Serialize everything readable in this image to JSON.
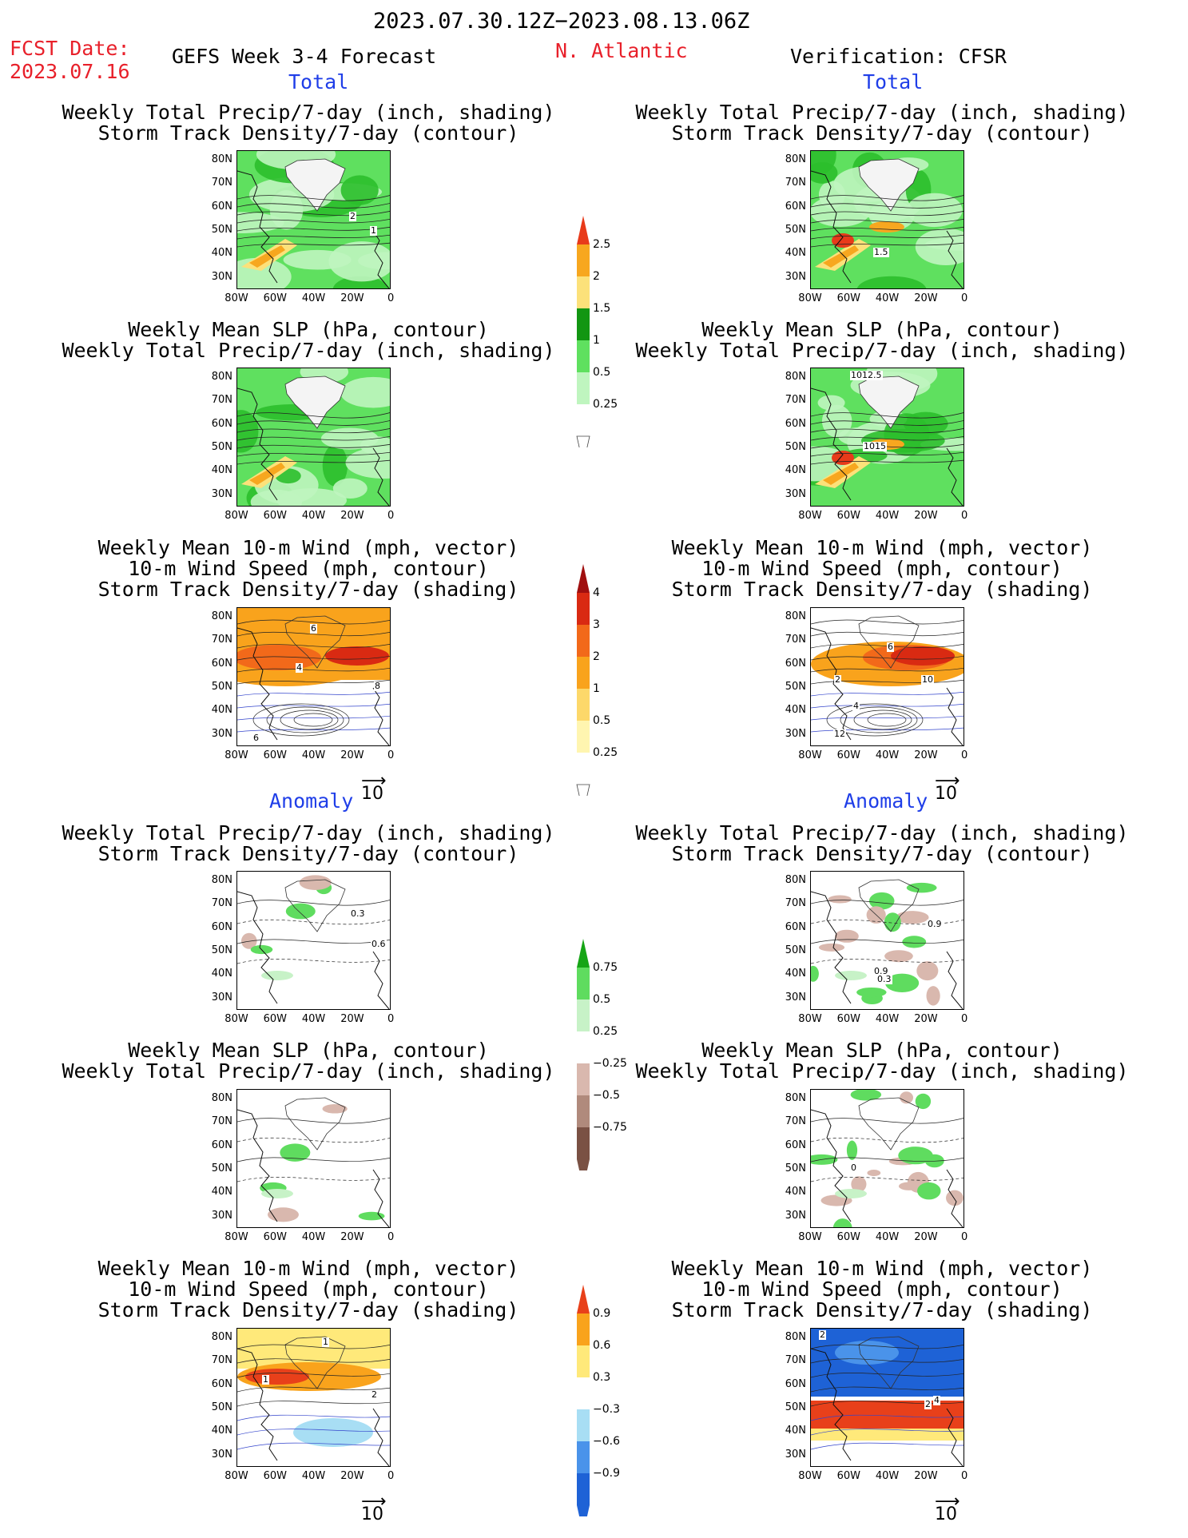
{
  "header": {
    "period": "2023.07.30.12Z−2023.08.13.06Z",
    "fcst_label": "FCST Date:",
    "fcst_date": "2023.07.16",
    "product": "GEFS Week 3-4 Forecast",
    "region": "N. Atlantic",
    "verification": "Verification: CFSR"
  },
  "sections": {
    "total": "Total",
    "anomaly": "Anomaly"
  },
  "titles": {
    "precip_track": "Weekly Total Precip/7-day (inch, shading)\nStorm Track Density/7-day (contour)",
    "slp_precip": "Weekly Mean SLP (hPa, contour)\nWeekly Total Precip/7-day (inch, shading)",
    "wind_track": "Weekly Mean 10-m Wind (mph, vector)\n10-m Wind Speed (mph, contour)\nStorm Track Density/7-day (shading)"
  },
  "axes": {
    "y_ticks": [
      "80N",
      "70N",
      "60N",
      "50N",
      "40N",
      "30N"
    ],
    "x_ticks": [
      "80W",
      "60W",
      "40W",
      "20W",
      "0"
    ]
  },
  "vector_ref": "10",
  "colorbars": {
    "precip_total": [
      "2.5",
      "2",
      "1.5",
      "1",
      "0.5",
      "0.25"
    ],
    "track_total": [
      "4",
      "3",
      "2",
      "1",
      "0.5",
      "0.25"
    ],
    "precip_anom": [
      "0.75",
      "0.5",
      "0.25",
      "−0.25",
      "−0.5",
      "−0.75"
    ],
    "track_anom": [
      "0.9",
      "0.6",
      "0.3",
      "−0.3",
      "−0.6",
      "−0.9"
    ]
  },
  "contour_labels": {
    "fc_track_total": [
      "2",
      "1"
    ],
    "ob_track_total": [
      "1.5"
    ],
    "ob_slp_total": [
      "1012.5",
      "1015"
    ],
    "fc_wind_total": [
      "6",
      "4",
      "8",
      "6"
    ],
    "ob_wind_total": [
      "6",
      "2",
      "4",
      "10",
      "12"
    ],
    "fc_track_anom": [
      "0.3",
      "0.6"
    ],
    "ob_track_anom": [
      "0.9",
      "0.9",
      "0.3"
    ],
    "ob_slp_anom": [
      "0"
    ],
    "fc_wind_anom": [
      "1",
      "1",
      "2"
    ],
    "ob_wind_anom": [
      "2",
      "2",
      "4"
    ]
  },
  "colors": {
    "precip": [
      "#bff5bf",
      "#5fe05f",
      "#2cbf2c",
      "#129612",
      "#fce17a",
      "#f7a71f",
      "#e83a1a"
    ],
    "track": [
      "#fff5b0",
      "#fdd86a",
      "#f9a31c",
      "#f2691a",
      "#d92a12",
      "#a00f0f"
    ],
    "precip_anom": [
      "#d9b8ae",
      "#b08a7c",
      "#7a5144",
      "#c7f2c7",
      "#5fdc5f",
      "#16a516"
    ],
    "track_anom": [
      "#1e62d6",
      "#4a93ea",
      "#a8def4",
      "#ffe97a",
      "#f9a31c",
      "#e8401a"
    ]
  }
}
